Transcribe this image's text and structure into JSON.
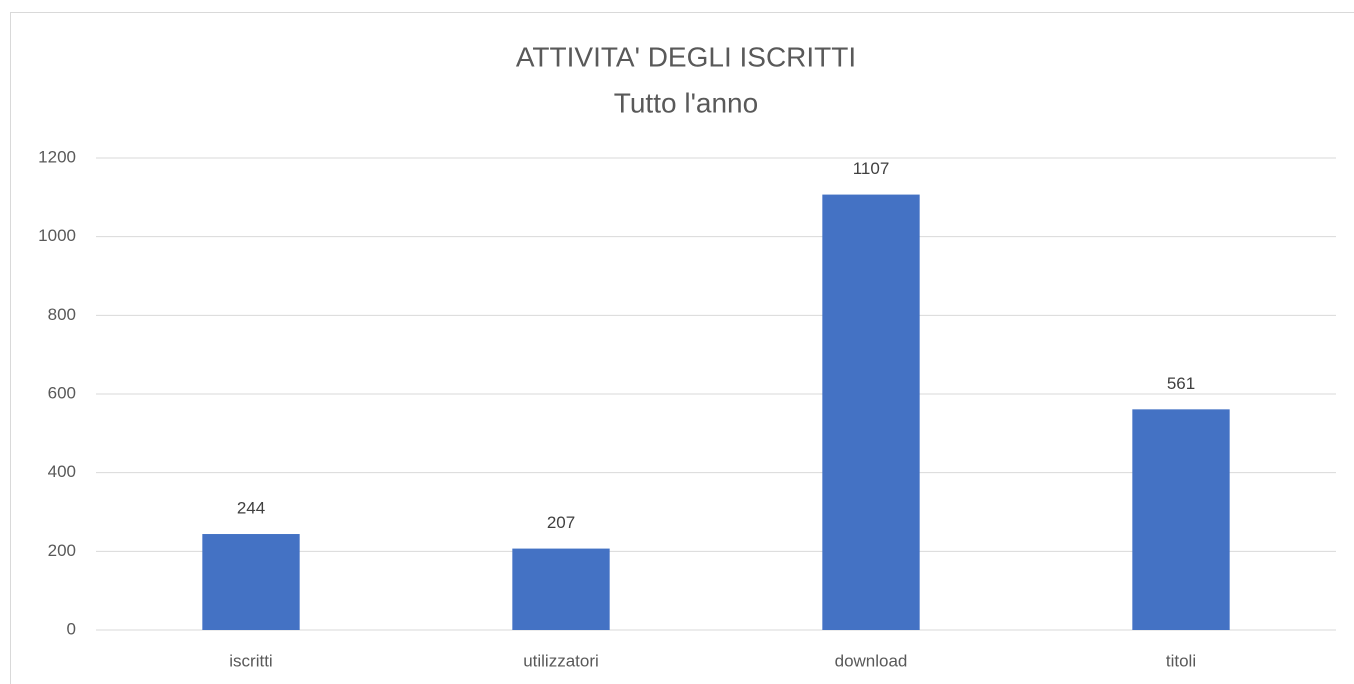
{
  "chart_data": {
    "type": "bar",
    "title": "ATTIVITA' DEGLI ISCRITTI",
    "subtitle": "Tutto l'anno",
    "categories": [
      "iscritti",
      "utilizzatori",
      "download",
      "titoli"
    ],
    "values": [
      244,
      207,
      1107,
      561
    ],
    "color": "#4472c4",
    "ylim": [
      0,
      1200
    ],
    "yticks": [
      0,
      200,
      400,
      600,
      800,
      1000,
      1200
    ],
    "grid": true
  }
}
